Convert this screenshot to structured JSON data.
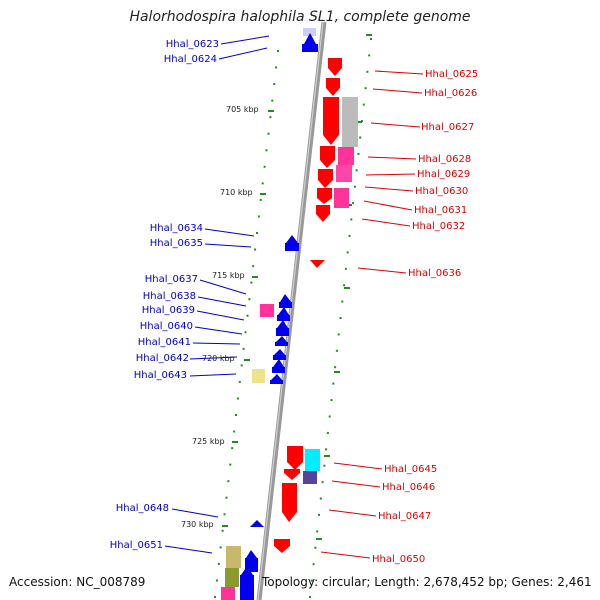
{
  "title": "Halorhodospira halophila SL1, complete genome",
  "footer": {
    "accession": "Accession: NC_008789",
    "stats": "Topology: circular; Length: 2,678,452 bp; Genes: 2,461"
  },
  "colors": {
    "forward_label": "#0000cc",
    "reverse_label": "#dd0000",
    "backbone": "#999999",
    "tick": "#228b22"
  },
  "kbp_ticks": [
    "705 kbp",
    "710 kbp",
    "715 kbp",
    "720 kbp",
    "725 kbp",
    "730 kbp"
  ],
  "left_genes": [
    "Hhal_0623",
    "Hhal_0624",
    "Hhal_0634",
    "Hhal_0635",
    "Hhal_0637",
    "Hhal_0638",
    "Hhal_0639",
    "Hhal_0640",
    "Hhal_0641",
    "Hhal_0642",
    "Hhal_0643",
    "Hhal_0648",
    "Hhal_0651"
  ],
  "right_genes": [
    "Hhal_0625",
    "Hhal_0626",
    "Hhal_0627",
    "Hhal_0628",
    "Hhal_0629",
    "Hhal_0630",
    "Hhal_0631",
    "Hhal_0632",
    "Hhal_0636",
    "Hhal_0645",
    "Hhal_0646",
    "Hhal_0647",
    "Hhal_0650"
  ]
}
